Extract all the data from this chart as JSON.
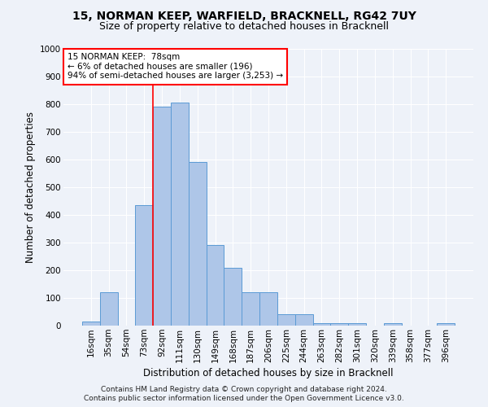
{
  "title1": "15, NORMAN KEEP, WARFIELD, BRACKNELL, RG42 7UY",
  "title2": "Size of property relative to detached houses in Bracknell",
  "xlabel": "Distribution of detached houses by size in Bracknell",
  "ylabel": "Number of detached properties",
  "categories": [
    "16sqm",
    "35sqm",
    "54sqm",
    "73sqm",
    "92sqm",
    "111sqm",
    "130sqm",
    "149sqm",
    "168sqm",
    "187sqm",
    "206sqm",
    "225sqm",
    "244sqm",
    "263sqm",
    "282sqm",
    "301sqm",
    "320sqm",
    "339sqm",
    "358sqm",
    "377sqm",
    "396sqm"
  ],
  "values": [
    15,
    120,
    0,
    435,
    790,
    805,
    590,
    290,
    210,
    120,
    120,
    40,
    40,
    10,
    8,
    10,
    0,
    8,
    0,
    0,
    8
  ],
  "bar_color": "#aec6e8",
  "bar_edge_color": "#5b9bd5",
  "vline_x_index": 3,
  "vline_color": "red",
  "annotation_text": "15 NORMAN KEEP:  78sqm\n← 6% of detached houses are smaller (196)\n94% of semi-detached houses are larger (3,253) →",
  "annotation_box_color": "white",
  "annotation_box_edge_color": "red",
  "ylim": [
    0,
    1000
  ],
  "yticks": [
    0,
    100,
    200,
    300,
    400,
    500,
    600,
    700,
    800,
    900,
    1000
  ],
  "footer1": "Contains HM Land Registry data © Crown copyright and database right 2024.",
  "footer2": "Contains public sector information licensed under the Open Government Licence v3.0.",
  "background_color": "#eef2f9",
  "grid_color": "white",
  "title_fontsize": 10,
  "subtitle_fontsize": 9,
  "axis_label_fontsize": 8.5,
  "tick_fontsize": 7.5,
  "annotation_fontsize": 7.5,
  "footer_fontsize": 6.5
}
